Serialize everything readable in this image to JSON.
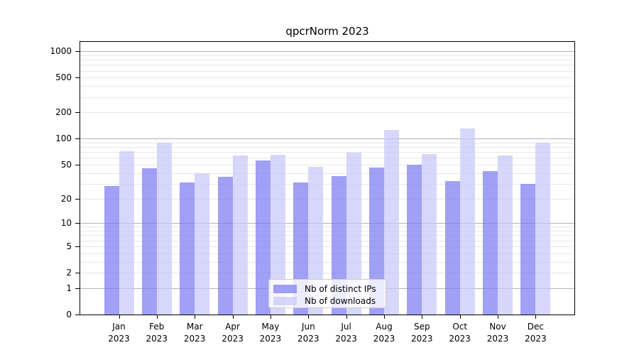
{
  "chart_data": {
    "type": "bar",
    "title": "qpcrNorm 2023",
    "categories": [
      "Jan",
      "Feb",
      "Mar",
      "Apr",
      "May",
      "Jun",
      "Jul",
      "Aug",
      "Sep",
      "Oct",
      "Nov",
      "Dec"
    ],
    "year_label": "2023",
    "series": [
      {
        "name": "Nb of distinct IPs",
        "color": "rgba(124,124,243,0.72)",
        "values": [
          28,
          45,
          31,
          36,
          56,
          31,
          37,
          46,
          50,
          32,
          42,
          30
        ]
      },
      {
        "name": "Nb of downloads",
        "color": "rgba(200,200,249,0.72)",
        "values": [
          71,
          89,
          40,
          64,
          65,
          47,
          69,
          126,
          66,
          130,
          64,
          90
        ]
      }
    ],
    "yscale": "log1p",
    "ylim": [
      0,
      1276
    ],
    "y_ticks": [
      0,
      1,
      2,
      5,
      10,
      20,
      50,
      100,
      200,
      500,
      1000
    ],
    "grid": {
      "major": [
        1,
        10,
        100,
        1000
      ],
      "minor_multipliers": [
        2,
        3,
        4,
        5,
        6,
        7,
        8,
        9
      ],
      "minor_decades": [
        1,
        10,
        100
      ]
    },
    "legend_position": "lower center",
    "xlabel": "",
    "ylabel": ""
  },
  "style": {
    "major_grid_color": "#b3b3b3",
    "minor_grid_color": "#e7e7e7",
    "spine_color": "#000000",
    "distinct_ips_color": "rgba(124,124,243,0.72)",
    "downloads_color": "rgba(200,200,249,0.72)",
    "legend_border_color": "#cccccc"
  }
}
